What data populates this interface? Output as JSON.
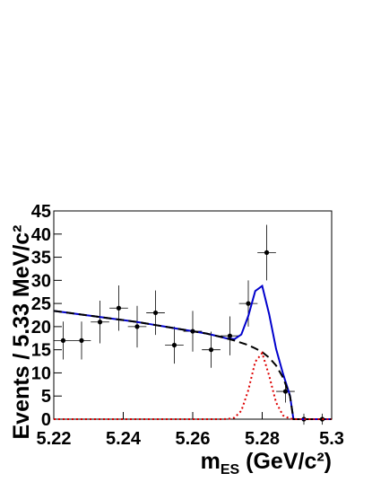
{
  "chart_data": {
    "type": "line",
    "xlim": [
      5.22,
      5.3
    ],
    "xticks": [
      5.22,
      5.24,
      5.26,
      5.28,
      5.3
    ],
    "ylim": [
      0,
      45
    ],
    "yticks": [
      0,
      5,
      10,
      15,
      20,
      25,
      30,
      35,
      40,
      45
    ],
    "y_label": "Events / 5.33 MeV/c²",
    "x_label": {
      "main": "m",
      "sub": "ES",
      "rest": " (GeV/c²)"
    },
    "series": [
      {
        "style": "points",
        "color": "#000000",
        "x": [
          5.2227,
          5.228,
          5.2333,
          5.2387,
          5.244,
          5.2493,
          5.2547,
          5.26,
          5.2653,
          5.2707,
          5.276,
          5.2813,
          5.2867,
          5.292,
          5.2973
        ],
        "values": [
          17,
          17,
          21,
          24,
          20,
          23,
          16,
          19,
          15,
          18,
          25,
          36,
          6,
          0,
          0
        ],
        "errors": [
          4.1,
          4.1,
          4.6,
          4.9,
          4.5,
          4.8,
          4.0,
          4.4,
          3.9,
          4.2,
          5.0,
          6.0,
          2.4,
          1.2,
          1.2
        ],
        "xerr": 0.00267
      },
      {
        "style": "solid",
        "color": "#0000cc",
        "x": [
          5.22,
          5.224,
          5.228,
          5.232,
          5.236,
          5.24,
          5.244,
          5.248,
          5.252,
          5.256,
          5.26,
          5.264,
          5.268,
          5.27,
          5.272,
          5.274,
          5.276,
          5.278,
          5.28,
          5.282,
          5.284,
          5.286,
          5.288,
          5.289,
          5.3
        ],
        "values": [
          23.4,
          23.0,
          22.6,
          22.2,
          21.8,
          21.4,
          21.0,
          20.5,
          20.0,
          19.5,
          19.0,
          18.5,
          17.8,
          17.4,
          17.3,
          18.3,
          22.3,
          27.7,
          28.8,
          22.7,
          15.2,
          9.8,
          5.1,
          0,
          0
        ]
      },
      {
        "style": "dashed",
        "color": "#000000",
        "x": [
          5.22,
          5.224,
          5.228,
          5.232,
          5.236,
          5.24,
          5.244,
          5.248,
          5.252,
          5.256,
          5.26,
          5.264,
          5.268,
          5.27,
          5.272,
          5.274,
          5.276,
          5.278,
          5.28,
          5.282,
          5.284,
          5.286,
          5.288,
          5.289,
          5.3
        ],
        "values": [
          23.4,
          23.0,
          22.6,
          22.2,
          21.8,
          21.4,
          21.0,
          20.5,
          20.0,
          19.5,
          19.0,
          18.5,
          17.8,
          17.4,
          17.0,
          16.5,
          16.0,
          15.3,
          14.5,
          13.3,
          11.6,
          9.0,
          5.0,
          0,
          0
        ]
      },
      {
        "style": "dotted",
        "color": "#dd0000",
        "x": [
          5.22,
          5.264,
          5.268,
          5.27,
          5.272,
          5.274,
          5.276,
          5.278,
          5.28,
          5.282,
          5.284,
          5.286,
          5.288,
          5.29,
          5.3
        ],
        "values": [
          0,
          0,
          0.002,
          0.03,
          0.31,
          1.81,
          6.26,
          12.4,
          14.3,
          9.4,
          3.6,
          0.8,
          0.1,
          0,
          0
        ]
      }
    ]
  }
}
